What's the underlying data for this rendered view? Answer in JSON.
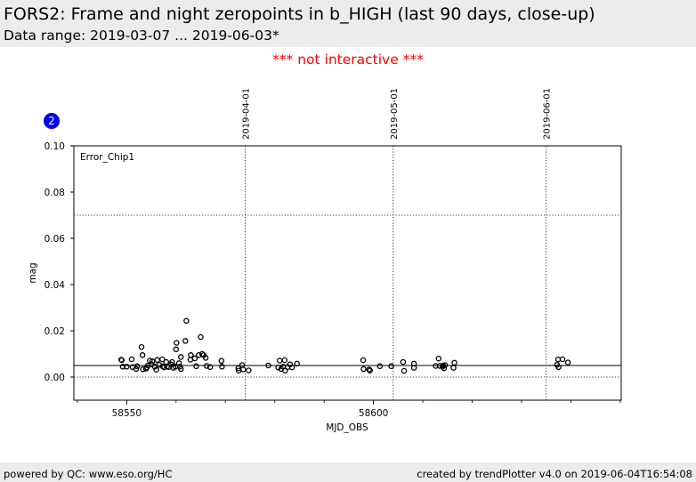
{
  "header": {
    "title": "FORS2: Frame and night zeropoints in b_HIGH (last 90 days, close-up)",
    "subtitle": "Data range: 2019-03-07 ... 2019-06-03*"
  },
  "notice": "*** not interactive ***",
  "badge": "2",
  "footer": {
    "left": "powered by QC: www.eso.org/HC",
    "right": "created by trendPlotter v4.0 on 2019-06-04T16:54:08"
  },
  "chart_data": {
    "type": "scatter",
    "xlabel": "MJD_OBS",
    "ylabel": "mag",
    "xlim": [
      58539.3,
      58650.2
    ],
    "ylim": [
      -0.01,
      0.1
    ],
    "xticks": [
      58550,
      58600
    ],
    "yticks": [
      0.0,
      0.02,
      0.04,
      0.06,
      0.08,
      0.1
    ],
    "ytick_labels": [
      "0.00",
      "0.02",
      "0.04",
      "0.06",
      "0.08",
      "0.10"
    ],
    "annotation": "Error_Chip1",
    "reference_lines": [
      {
        "y": 0.005,
        "style": "solid"
      },
      {
        "y": 0.07,
        "style": "dotted"
      },
      {
        "y": 0.0,
        "style": "dotted"
      }
    ],
    "date_markers": [
      {
        "x": 58574.0,
        "label": "2019-04-01"
      },
      {
        "x": 58604.0,
        "label": "2019-05-01"
      },
      {
        "x": 58635.0,
        "label": "2019-06-01"
      }
    ],
    "grid": false,
    "series": [
      {
        "x": [
          58548.9,
          58549.0,
          58549.2,
          58550.0,
          58551.0,
          58551.2,
          58551.9,
          58552.1,
          58553.0,
          58553.2,
          58553.3,
          58553.9,
          58554.1,
          58554.3,
          58554.7,
          58555.0,
          58555.2,
          58555.7,
          58556.0,
          58556.2,
          58556.6,
          58557.2,
          58557.3,
          58557.6,
          58558.0,
          58558.2,
          58558.5,
          58559.0,
          58559.2,
          58559.5,
          58559.9,
          58560.0,
          58560.1,
          58560.6,
          58560.8,
          58561.0,
          58561.0,
          58561.9,
          58562.1,
          58562.9,
          58563.0,
          58563.8,
          58564.1,
          58564.6,
          58565.0,
          58565.3,
          58565.6,
          58566.0,
          58566.2,
          58566.9,
          58569.2,
          58569.3,
          58572.6,
          58572.7,
          58573.4,
          58573.6,
          58574.7,
          58578.7,
          58580.7,
          58581.0,
          58581.3,
          58581.7,
          58582.0,
          58582.1,
          58582.6,
          58583.1,
          58583.5,
          58584.5,
          58597.9,
          58598.0,
          58599.1,
          58599.3,
          58601.3,
          58603.6,
          58606.0,
          58606.2,
          58608.2,
          58608.2,
          58612.6,
          58613.2,
          58613.4,
          58614.0,
          58614.1,
          58614.3,
          58614.5,
          58616.2,
          58616.4,
          58637.2,
          58637.4,
          58637.5,
          58638.3,
          58639.4
        ],
        "y": [
          0.0075,
          0.0073,
          0.0045,
          0.0045,
          0.0077,
          0.0043,
          0.0035,
          0.0047,
          0.013,
          0.0095,
          0.0034,
          0.0036,
          0.0042,
          0.005,
          0.0071,
          0.0055,
          0.0068,
          0.0045,
          0.0032,
          0.0074,
          0.0053,
          0.0077,
          0.0046,
          0.0042,
          0.0065,
          0.0046,
          0.0043,
          0.0055,
          0.0065,
          0.004,
          0.0045,
          0.012,
          0.0148,
          0.006,
          0.0045,
          0.0087,
          0.0035,
          0.0156,
          0.0243,
          0.0075,
          0.0095,
          0.0081,
          0.0047,
          0.0095,
          0.0173,
          0.01,
          0.0095,
          0.0083,
          0.0048,
          0.0043,
          0.007,
          0.0045,
          0.0038,
          0.0028,
          0.0052,
          0.0033,
          0.0029,
          0.005,
          0.0041,
          0.0071,
          0.0035,
          0.0045,
          0.0073,
          0.0028,
          0.0043,
          0.0055,
          0.0042,
          0.0058,
          0.0073,
          0.0035,
          0.0033,
          0.0028,
          0.0047,
          0.0047,
          0.0065,
          0.0027,
          0.004,
          0.0058,
          0.0048,
          0.008,
          0.0048,
          0.0045,
          0.005,
          0.0038,
          0.0052,
          0.004,
          0.0062,
          0.0053,
          0.0076,
          0.0043,
          0.0077,
          0.0063
        ]
      }
    ]
  }
}
